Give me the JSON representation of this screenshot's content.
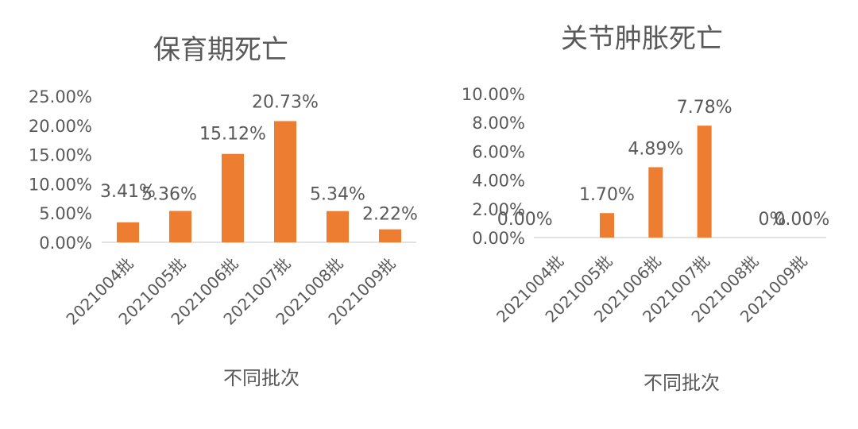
{
  "chart_data": [
    {
      "type": "bar",
      "title": "保育期死亡",
      "xlabel": "不同批次",
      "ylabel": "",
      "categories": [
        "2021004批",
        "2021005批",
        "2021006批",
        "2021007批",
        "2021008批",
        "2021009批"
      ],
      "values": [
        3.41,
        5.36,
        15.12,
        20.73,
        5.34,
        2.22
      ],
      "data_labels": [
        "3.41%",
        "5.36%",
        "15.12%",
        "20.73%",
        "5.34%",
        "2.22%"
      ],
      "y_ticks": [
        "0.00%",
        "5.00%",
        "10.00%",
        "15.00%",
        "20.00%",
        "25.00%"
      ],
      "ylim": [
        0,
        25
      ],
      "grid": false,
      "legend": "none",
      "bar_color": "#ED7D31"
    },
    {
      "type": "bar",
      "title": "关节肿胀死亡",
      "xlabel": "不同批次",
      "ylabel": "",
      "categories": [
        "2021004批",
        "2021005批",
        "2021006批",
        "2021007批",
        "2021008批",
        "2021009批"
      ],
      "values": [
        0,
        1.7,
        4.89,
        7.78,
        0,
        0
      ],
      "data_labels": [
        "0.00%",
        "1.70%",
        "4.89%",
        "7.78%",
        "0%",
        "0.00%"
      ],
      "y_ticks": [
        "0.00%",
        "2.00%",
        "4.00%",
        "6.00%",
        "8.00%",
        "10.00%"
      ],
      "ylim": [
        0,
        10
      ],
      "grid": false,
      "legend": "none",
      "bar_color": "#ED7D31"
    }
  ]
}
